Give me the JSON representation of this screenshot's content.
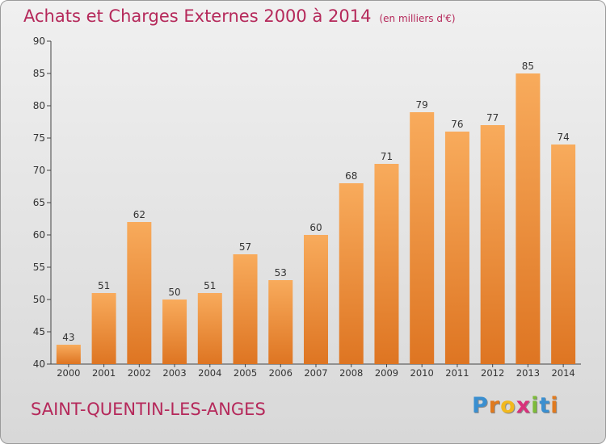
{
  "header": {
    "title": "Achats et Charges Externes 2000 à 2014",
    "unit": "(en milliers d'€)"
  },
  "footer": {
    "commune": "SAINT-QUENTIN-LES-ANGES",
    "logo_letters": [
      "P",
      "r",
      "o",
      "x",
      "i",
      "t",
      "i"
    ],
    "logo_colors": [
      "#3a8fd0",
      "#e07a1f",
      "#f2b91e",
      "#d8317a",
      "#7dbb3a",
      "#3a8fd0",
      "#e07a1f"
    ]
  },
  "chart_data": {
    "type": "bar",
    "title": "Achats et Charges Externes 2000 à 2014",
    "subtitle": "(en milliers d'€)",
    "categories": [
      "2000",
      "2001",
      "2002",
      "2003",
      "2004",
      "2005",
      "2006",
      "2007",
      "2008",
      "2009",
      "2010",
      "2011",
      "2012",
      "2013",
      "2014"
    ],
    "values": [
      43,
      51,
      62,
      50,
      51,
      57,
      53,
      60,
      68,
      71,
      79,
      76,
      77,
      85,
      74
    ],
    "ylim": [
      40,
      90
    ],
    "yticks": [
      40,
      45,
      50,
      55,
      60,
      65,
      70,
      75,
      80,
      85,
      90
    ],
    "grid": false,
    "bar_color": "#f0892e",
    "bar_color_light": "#f8ab5c",
    "bar_color_dark": "#de7522",
    "xlabel": "",
    "ylabel": ""
  }
}
